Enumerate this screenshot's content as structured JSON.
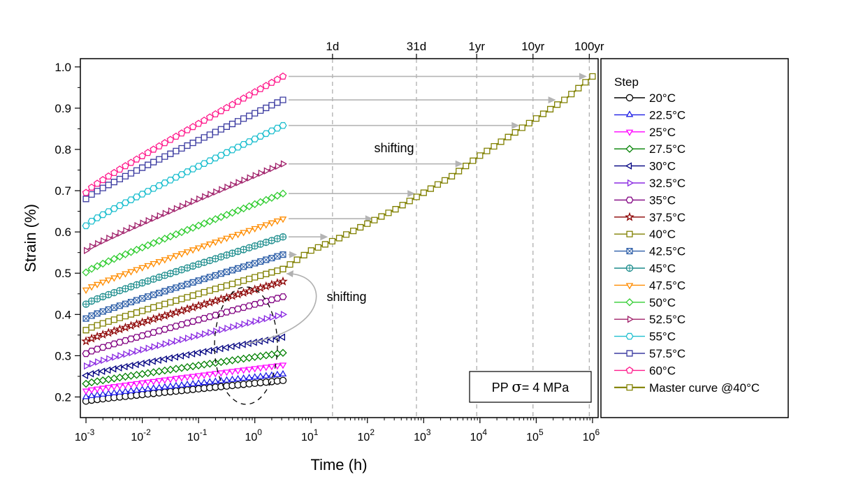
{
  "chart_data": {
    "type": "scatter",
    "title": "",
    "xlabel": "Time (h)",
    "ylabel": "Strain (%)",
    "x_scale": "log",
    "xlim_log10": [
      -3.1,
      6.1
    ],
    "ylim": [
      0.15,
      1.02
    ],
    "x_ticks": [
      "-3",
      "-2",
      "-1",
      "0",
      "1",
      "2",
      "3",
      "4",
      "5",
      "6"
    ],
    "y_ticks": [
      "0.2",
      "0.3",
      "0.4",
      "0.5",
      "0.6",
      "0.7",
      "0.8",
      "0.9",
      "1.0"
    ],
    "legend_title": "Step",
    "legend_position": "right, outside plot",
    "time_markers": [
      {
        "label": "1d",
        "hours": 24
      },
      {
        "label": "31d",
        "hours": 744
      },
      {
        "label": "1yr",
        "hours": 8760
      },
      {
        "label": "10yr",
        "hours": 87600
      },
      {
        "label": "100yr",
        "hours": 876000
      }
    ],
    "series": [
      {
        "name": "20°C",
        "color": "#000000",
        "marker": "circle",
        "y_start": 0.19,
        "y_end": 0.24
      },
      {
        "name": "22.5°C",
        "color": "#1f1fe6",
        "marker": "triangle-up",
        "y_start": 0.2,
        "y_end": 0.255
      },
      {
        "name": "25°C",
        "color": "#ff00ff",
        "marker": "triangle-down",
        "y_start": 0.215,
        "y_end": 0.278
      },
      {
        "name": "27.5°C",
        "color": "#008000",
        "marker": "diamond",
        "y_start": 0.232,
        "y_end": 0.307
      },
      {
        "name": "30°C",
        "color": "#000080",
        "marker": "triangle-left",
        "y_start": 0.252,
        "y_end": 0.345
      },
      {
        "name": "32.5°C",
        "color": "#8b2be2",
        "marker": "triangle-right",
        "y_start": 0.275,
        "y_end": 0.4
      },
      {
        "name": "35°C",
        "color": "#800080",
        "marker": "hexagon",
        "y_start": 0.305,
        "y_end": 0.443
      },
      {
        "name": "37.5°C",
        "color": "#8b0000",
        "marker": "star",
        "y_start": 0.335,
        "y_end": 0.48
      },
      {
        "name": "40°C",
        "color": "#808000",
        "marker": "square",
        "y_start": 0.362,
        "y_end": 0.51
      },
      {
        "name": "42.5°C",
        "color": "#2e5fa8",
        "marker": "square-x",
        "y_start": 0.39,
        "y_end": 0.545
      },
      {
        "name": "45°C",
        "color": "#1b8c8c",
        "marker": "circle-plus",
        "y_start": 0.425,
        "y_end": 0.588
      },
      {
        "name": "47.5°C",
        "color": "#ff8c00",
        "marker": "triangle-down",
        "y_start": 0.46,
        "y_end": 0.632
      },
      {
        "name": "50°C",
        "color": "#32cd32",
        "marker": "diamond",
        "y_start": 0.502,
        "y_end": 0.693
      },
      {
        "name": "52.5°C",
        "color": "#a0206a",
        "marker": "triangle-right",
        "y_start": 0.555,
        "y_end": 0.765
      },
      {
        "name": "55°C",
        "color": "#1fbfcf",
        "marker": "hexagon",
        "y_start": 0.615,
        "y_end": 0.858
      },
      {
        "name": "57.5°C",
        "color": "#3b3ba0",
        "marker": "square",
        "y_start": 0.68,
        "y_end": 0.92
      },
      {
        "name": "60°C",
        "color": "#ff1a8c",
        "marker": "pentagon",
        "y_start": 0.695,
        "y_end": 0.977
      }
    ],
    "series_x_range_log10": [
      -3.0,
      0.5
    ],
    "master_curve": {
      "name": "Master curve @40°C",
      "color": "#808000",
      "marker": "square",
      "log10_x": [
        0.5,
        1.0,
        1.5,
        2.0,
        2.5,
        3.0,
        3.5,
        4.0,
        4.5,
        5.0,
        5.5,
        6.0
      ],
      "y": [
        0.51,
        0.555,
        0.585,
        0.62,
        0.655,
        0.695,
        0.735,
        0.785,
        0.83,
        0.875,
        0.92,
        0.977
      ]
    },
    "shift_arrows": [
      {
        "y": 0.977,
        "to_log10_x": 5.9
      },
      {
        "y": 0.92,
        "to_log10_x": 5.35
      },
      {
        "y": 0.858,
        "to_log10_x": 4.7
      },
      {
        "y": 0.765,
        "to_log10_x": 3.7
      },
      {
        "y": 0.693,
        "to_log10_x": 2.85
      },
      {
        "y": 0.632,
        "to_log10_x": 2.1
      },
      {
        "y": 0.588,
        "to_log10_x": 1.3
      },
      {
        "y": 0.545,
        "to_log10_x": 0.75
      }
    ],
    "annotations": {
      "shifting_top": "shifting",
      "shifting_bottom": "shifting",
      "box_prefix": "PP ",
      "box_sigma": "σ",
      "box_value": "= 4 MPa"
    }
  }
}
